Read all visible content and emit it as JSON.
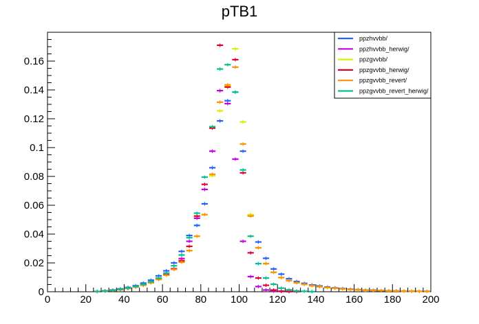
{
  "chart_data": {
    "type": "scatter",
    "title": "pTB1",
    "xlabel": "",
    "ylabel": "",
    "xlim": [
      0,
      200
    ],
    "ylim": [
      0,
      0.18
    ],
    "bin_width": 4,
    "x_ticks": [
      "0",
      "20",
      "40",
      "60",
      "80",
      "100",
      "120",
      "140",
      "160",
      "180",
      "200"
    ],
    "y_ticks": [
      "0",
      "0.02",
      "0.04",
      "0.06",
      "0.08",
      "0.1",
      "0.12",
      "0.14",
      "0.16"
    ],
    "legend_position": "top-right",
    "grid": false,
    "x": [
      26,
      30,
      34,
      38,
      42,
      46,
      50,
      54,
      58,
      62,
      66,
      70,
      74,
      78,
      82,
      86,
      90,
      94,
      98,
      102,
      106,
      110,
      114,
      118,
      122,
      126,
      130,
      134,
      138,
      142,
      146,
      150,
      154,
      158,
      162,
      166,
      170,
      174,
      178,
      182,
      186,
      190,
      194,
      198
    ],
    "series": [
      {
        "name": "ppzhvvbb/",
        "color": "#1f5fff",
        "values": [
          0.0002,
          0.0006,
          0.0012,
          0.002,
          0.003,
          0.0042,
          0.006,
          0.008,
          0.011,
          0.0145,
          0.02,
          0.028,
          0.039,
          0.046,
          0.061,
          0.086,
          0.1185,
          0.1325,
          0.1385,
          0.0975,
          0.053,
          0.0345,
          0.0232,
          0.0158,
          0.0122,
          0.009,
          0.0071,
          0.0058,
          0.0047,
          0.004,
          0.0033,
          0.0027,
          0.0022,
          0.0018,
          0.0015,
          0.0012,
          0.0011,
          0.0009,
          0.0007,
          0.0006,
          0.0005,
          0.0004,
          0.0003,
          0.0003
        ]
      },
      {
        "name": "ppzhvvbb_herwig/",
        "color": "#c000e0",
        "values": [
          0.0002,
          0.0005,
          0.001,
          0.0016,
          0.0025,
          0.0035,
          0.005,
          0.0068,
          0.009,
          0.012,
          0.016,
          0.023,
          0.035,
          0.051,
          0.071,
          0.0975,
          0.1395,
          0.1305,
          0.092,
          0.035,
          0.0105,
          0.0036,
          0.0012,
          0.0004,
          0.0002,
          0.0001,
          0,
          0,
          0,
          0,
          0,
          0,
          0,
          0,
          0,
          0,
          0,
          0,
          0,
          0,
          0,
          0,
          0,
          0
        ]
      },
      {
        "name": "ppzgvvbb/",
        "color": "#d6f000",
        "values": [
          0.0001,
          0.0004,
          0.0008,
          0.0014,
          0.0022,
          0.0032,
          0.0045,
          0.0062,
          0.0085,
          0.0115,
          0.0155,
          0.0205,
          0.0285,
          0.0385,
          0.0535,
          0.0805,
          0.1255,
          0.1425,
          0.1685,
          0.1178,
          0.0535,
          0.0305,
          0.0195,
          0.0135,
          0.0098,
          0.0077,
          0.0062,
          0.0051,
          0.0042,
          0.0035,
          0.0029,
          0.0024,
          0.0019,
          0.0016,
          0.0013,
          0.0011,
          0.0009,
          0.0008,
          0.0006,
          0.0005,
          0.0004,
          0.0004,
          0.0003,
          0.0002
        ]
      },
      {
        "name": "ppzgvvbb_herwig/",
        "color": "#e0002a",
        "values": [
          0.0002,
          0.0005,
          0.001,
          0.0016,
          0.0024,
          0.0034,
          0.0048,
          0.0065,
          0.0088,
          0.0118,
          0.0158,
          0.0215,
          0.0315,
          0.0525,
          0.0745,
          0.1135,
          0.171,
          0.142,
          0.161,
          0.0825,
          0.027,
          0.0095,
          0.0045,
          0.0012,
          0.0004,
          0.0002,
          0.0001,
          0,
          0,
          0,
          0,
          0,
          0,
          0,
          0,
          0,
          0,
          0,
          0,
          0,
          0,
          0,
          0,
          0
        ]
      },
      {
        "name": "ppzgvvbb_revert/",
        "color": "#ff9000",
        "values": [
          0.0001,
          0.0004,
          0.0008,
          0.0014,
          0.0022,
          0.0032,
          0.0045,
          0.0062,
          0.0085,
          0.0115,
          0.0155,
          0.0205,
          0.0285,
          0.0385,
          0.0535,
          0.0815,
          0.1315,
          0.1435,
          0.1558,
          0.1025,
          0.0525,
          0.0305,
          0.0195,
          0.0135,
          0.0098,
          0.0077,
          0.0062,
          0.0051,
          0.0042,
          0.0035,
          0.0029,
          0.0024,
          0.0019,
          0.0016,
          0.0013,
          0.0011,
          0.0009,
          0.0008,
          0.0006,
          0.0005,
          0.0004,
          0.0004,
          0.0003,
          0.0002
        ]
      },
      {
        "name": "ppzgvvbb_revert_herwig/",
        "color": "#00c090",
        "values": [
          0.0002,
          0.0005,
          0.001,
          0.0017,
          0.0026,
          0.0037,
          0.0052,
          0.007,
          0.0095,
          0.013,
          0.018,
          0.0255,
          0.0375,
          0.0545,
          0.0795,
          0.1145,
          0.1545,
          0.1575,
          0.1385,
          0.0845,
          0.0385,
          0.0195,
          0.0095,
          0.0052,
          0.0025,
          0.0013,
          0.0006,
          0.0003,
          0.0001,
          0,
          0,
          0,
          0,
          0,
          0,
          0,
          0,
          0,
          0,
          0,
          0,
          0,
          0,
          0
        ]
      }
    ]
  }
}
